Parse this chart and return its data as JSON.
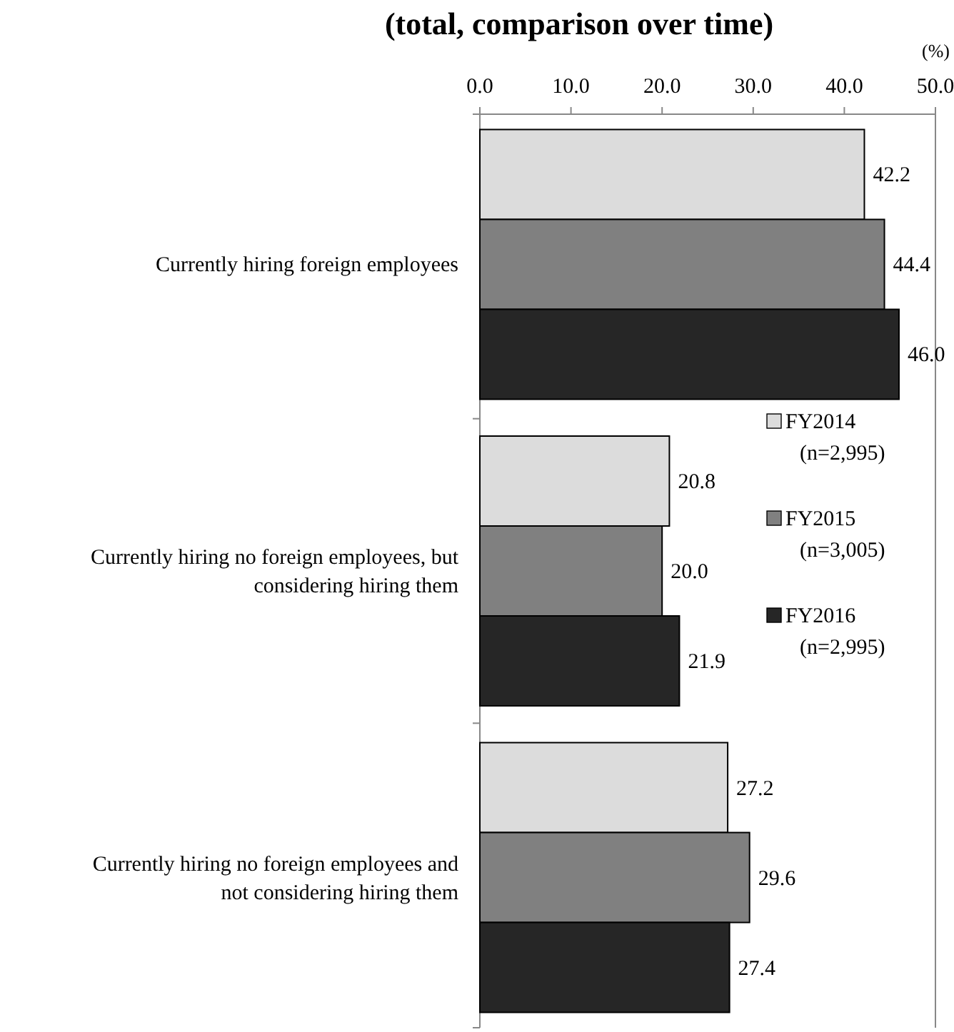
{
  "chart_data": {
    "type": "bar",
    "orientation": "horizontal",
    "title": "(total, comparison over time)",
    "xlabel": "(%)",
    "categories": [
      "Currently hiring foreign employees",
      "Currently hiring no foreign employees, but\nconsidering hiring them",
      "Currently hiring no foreign employees and\nnot considering hiring them"
    ],
    "series": [
      {
        "name": "FY2014\n(n=2,995)",
        "color": "#dcdcdc",
        "values": [
          42.2,
          20.8,
          27.2
        ],
        "value_labels": [
          "42.2",
          "20.8",
          "27.2"
        ]
      },
      {
        "name": "FY2015\n(n=3,005)",
        "color": "#808080",
        "values": [
          44.4,
          20.0,
          29.6
        ],
        "value_labels": [
          "44.4",
          "20.0",
          "29.6"
        ]
      },
      {
        "name": "FY2016\n(n=2,995)",
        "color": "#262626",
        "values": [
          46.0,
          21.9,
          27.4
        ],
        "value_labels": [
          "46.0",
          "21.9",
          "27.4"
        ]
      }
    ],
    "xlim": [
      0,
      50
    ],
    "xticks": [
      {
        "value": 0,
        "label": "0.0"
      },
      {
        "value": 10,
        "label": "10.0"
      },
      {
        "value": 20,
        "label": "20.0"
      },
      {
        "value": 30,
        "label": "30.0"
      },
      {
        "value": 40,
        "label": "40.0"
      },
      {
        "value": 50,
        "label": "50.0"
      }
    ],
    "legend": "right",
    "grid": false
  }
}
